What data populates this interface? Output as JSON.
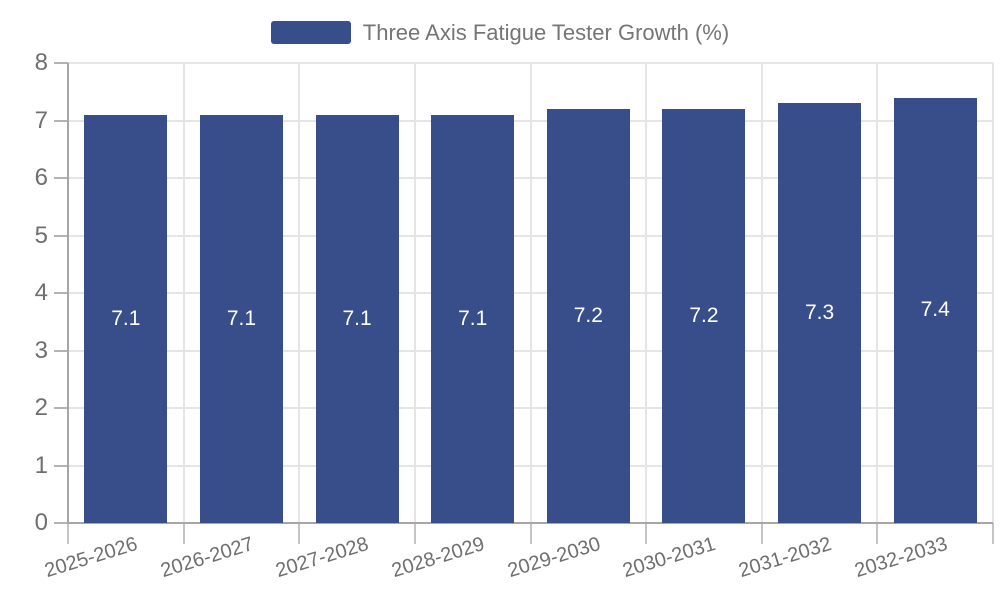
{
  "legend": {
    "label": "Three Axis Fatigue Tester Growth (%)"
  },
  "chart_data": {
    "type": "bar",
    "title": "",
    "categories": [
      "2025-2026",
      "2026-2027",
      "2027-2028",
      "2028-2029",
      "2029-2030",
      "2030-2031",
      "2031-2032",
      "2032-2033"
    ],
    "series": [
      {
        "name": "Three Axis Fatigue Tester Growth (%)",
        "values": [
          7.1,
          7.1,
          7.1,
          7.1,
          7.2,
          7.2,
          7.3,
          7.4
        ],
        "labels": [
          "7.1",
          "7.1",
          "7.1",
          "7.1",
          "7.2",
          "7.2",
          "7.3",
          "7.4"
        ],
        "color": "#384e8a"
      }
    ],
    "bar_label_color": "#ffffff",
    "xlabel": "",
    "ylabel": "",
    "ylim": [
      0,
      8
    ],
    "yticks": [
      0,
      1,
      2,
      3,
      4,
      5,
      6,
      7,
      8
    ],
    "grid": true,
    "legend_position": "top-center",
    "xtick_rotation_deg": -17
  }
}
